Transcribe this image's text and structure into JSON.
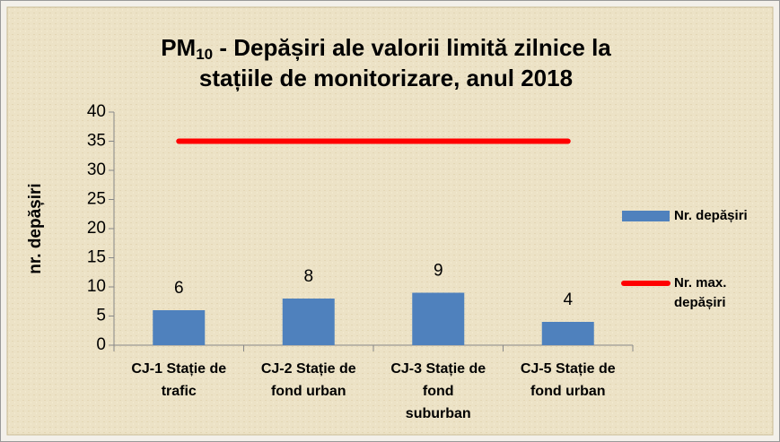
{
  "chart_data": {
    "type": "bar",
    "title": {
      "prefix": "PM",
      "subscript": "10",
      "line1": " - Depășiri ale valorii limită zilnice la",
      "line2": "stațiile de monitorizare, anul 2018"
    },
    "y_label": "nr. depășiri",
    "categories": [
      [
        "CJ-1 Stație de",
        "trafic"
      ],
      [
        "CJ-2 Stație de",
        "fond urban"
      ],
      [
        "CJ-3 Stație de",
        "fond",
        "suburban"
      ],
      [
        "CJ-5 Stație de",
        "fond urban"
      ]
    ],
    "series": [
      {
        "name": "Nr. depășiri",
        "type": "bar",
        "color": "#4f81bd",
        "values": [
          6,
          8,
          9,
          4
        ]
      },
      {
        "name": "Nr. max. depășiri",
        "type": "line",
        "color": "#ff0000",
        "values": [
          35,
          35,
          35,
          35
        ]
      }
    ],
    "ylim": [
      0,
      40
    ],
    "yticks": [
      0,
      5,
      10,
      15,
      20,
      25,
      30,
      35,
      40
    ],
    "legend": "right"
  }
}
